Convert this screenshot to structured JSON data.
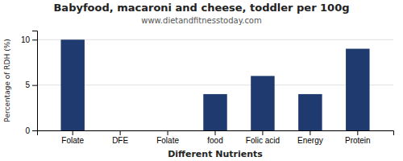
{
  "chart_data": {
    "type": "bar",
    "title": "Babyfood, macaroni and cheese, toddler per 100g",
    "subtitle": "www.dietandfitnesstoday.com",
    "xlabel": "Different Nutrients",
    "ylabel": "Percentage of RDH (%)",
    "categories": [
      "Folate",
      "DFE",
      "Folate",
      "food",
      "Folic acid",
      "Energy",
      "Protein"
    ],
    "values": [
      10.0,
      0.0,
      0.0,
      4.0,
      6.0,
      4.0,
      9.0
    ],
    "color": "#1e3a6e",
    "ylim": [
      0,
      11
    ],
    "yticks": [
      0,
      5,
      10
    ],
    "grid": true
  }
}
